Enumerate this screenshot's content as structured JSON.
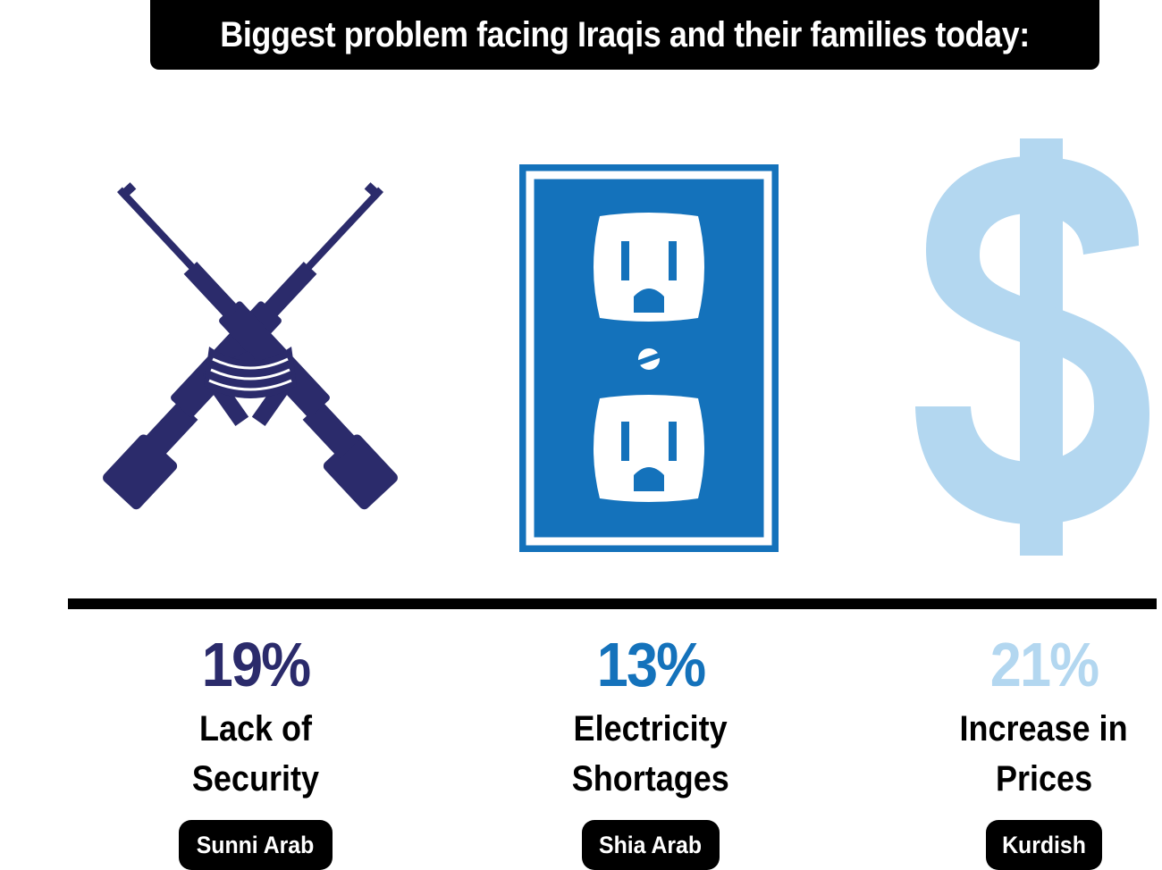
{
  "title": "Biggest problem facing Iraqis and their families today:",
  "colors": {
    "security": "#2b2b6b",
    "electricity": "#1472bb",
    "prices": "#b3d7f0",
    "black": "#000000"
  },
  "items": [
    {
      "icon": "crossed-rifles-icon",
      "percent": "19%",
      "label_line1": "Lack of",
      "label_line2": "Security",
      "group": "Sunni Arab"
    },
    {
      "icon": "electrical-outlet-icon",
      "percent": "13%",
      "label_line1": "Electricity",
      "label_line2": "Shortages",
      "group": "Shia Arab"
    },
    {
      "icon": "dollar-sign-icon",
      "percent": "21%",
      "label_line1": "Increase in",
      "label_line2": "Prices",
      "group": "Kurdish"
    }
  ]
}
